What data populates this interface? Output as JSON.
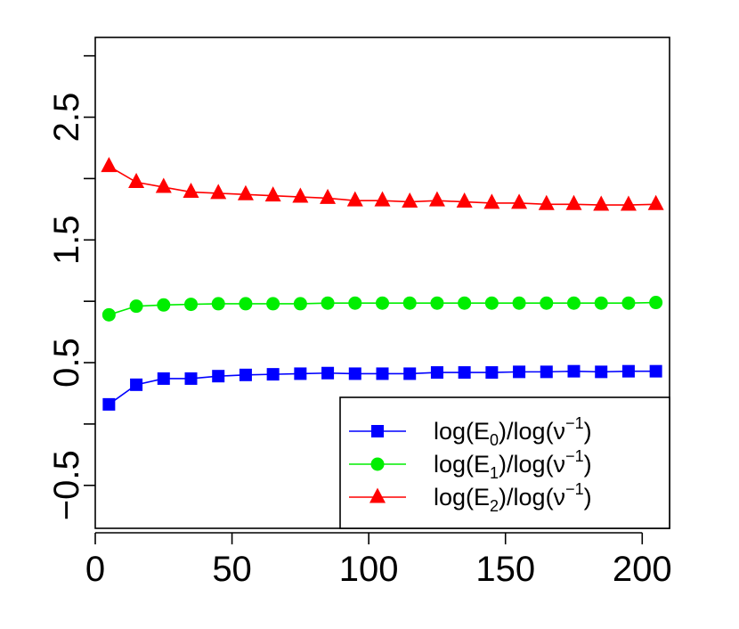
{
  "chart_data": {
    "type": "line",
    "title": "",
    "xlabel": "",
    "ylabel": "",
    "xlim": [
      0,
      210
    ],
    "ylim": [
      -0.85,
      3.15
    ],
    "x_ticks": [
      {
        "value": 0,
        "label": "0"
      },
      {
        "value": 50,
        "label": "50"
      },
      {
        "value": 100,
        "label": "100"
      },
      {
        "value": 150,
        "label": "150"
      },
      {
        "value": 200,
        "label": "200"
      }
    ],
    "y_ticks": [
      {
        "value": -0.5,
        "label": "−0.5"
      },
      {
        "value": 0,
        "label": ""
      },
      {
        "value": 0.5,
        "label": "0.5"
      },
      {
        "value": 1,
        "label": ""
      },
      {
        "value": 1.5,
        "label": "1.5"
      },
      {
        "value": 2,
        "label": ""
      },
      {
        "value": 2.5,
        "label": "2.5"
      },
      {
        "value": 3,
        "label": ""
      }
    ],
    "grid": false,
    "legend_position": "bottom-right",
    "x": [
      5,
      15,
      25,
      35,
      45,
      55,
      65,
      75,
      85,
      95,
      105,
      115,
      125,
      135,
      145,
      155,
      165,
      175,
      185,
      195,
      205
    ],
    "series": [
      {
        "name_parts": {
          "pre": "log(E",
          "sub": "0",
          "mid": ")/log(ν",
          "sup": "−1",
          "post": ")"
        },
        "color": "#0000ff",
        "marker": "square",
        "values": [
          0.16,
          0.32,
          0.37,
          0.37,
          0.39,
          0.4,
          0.405,
          0.41,
          0.415,
          0.41,
          0.41,
          0.41,
          0.42,
          0.42,
          0.42,
          0.425,
          0.425,
          0.43,
          0.425,
          0.43,
          0.43
        ]
      },
      {
        "name_parts": {
          "pre": "log(E",
          "sub": "1",
          "mid": ")/log(ν",
          "sup": "−1",
          "post": ")"
        },
        "color": "#00ee00",
        "marker": "circle",
        "values": [
          0.89,
          0.96,
          0.97,
          0.975,
          0.98,
          0.98,
          0.98,
          0.98,
          0.985,
          0.985,
          0.985,
          0.985,
          0.985,
          0.985,
          0.985,
          0.985,
          0.985,
          0.985,
          0.985,
          0.985,
          0.99
        ]
      },
      {
        "name_parts": {
          "pre": "log(E",
          "sub": "2",
          "mid": ")/log(ν",
          "sup": "−1",
          "post": ")"
        },
        "color": "#ff0000",
        "marker": "triangle",
        "values": [
          2.1,
          1.97,
          1.93,
          1.89,
          1.88,
          1.87,
          1.86,
          1.85,
          1.84,
          1.82,
          1.82,
          1.81,
          1.82,
          1.81,
          1.8,
          1.8,
          1.79,
          1.79,
          1.785,
          1.785,
          1.79
        ]
      }
    ]
  }
}
